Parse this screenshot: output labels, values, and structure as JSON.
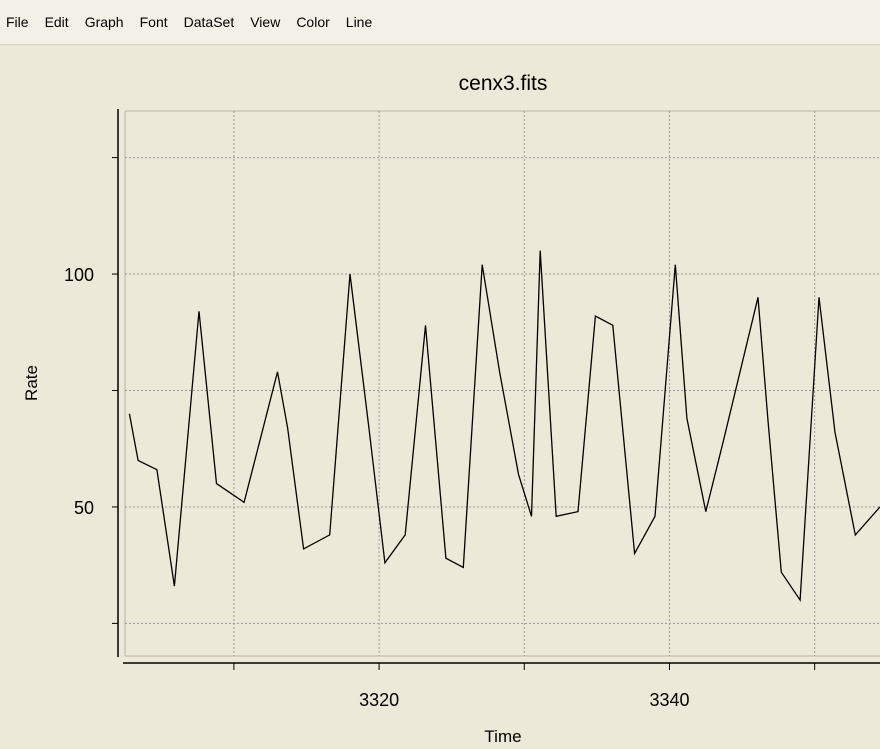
{
  "menu": {
    "items": [
      "File",
      "Edit",
      "Graph",
      "Font",
      "DataSet",
      "View",
      "Color",
      "Line"
    ]
  },
  "colors": {
    "background": "#ece9d8",
    "plot_background": "#ece9d8",
    "line": "#000000",
    "grid": "#999999"
  },
  "chart_data": {
    "type": "line",
    "title": "cenx3.fits",
    "xlabel": "Time",
    "ylabel": "Rate",
    "xlim": [
      3302.5,
      3354.5
    ],
    "ylim": [
      18,
      135
    ],
    "xticks": [
      3320,
      3340
    ],
    "yticks": [
      50,
      100
    ],
    "xgrid": [
      3310,
      3320,
      3330,
      3340,
      3350
    ],
    "ygrid": [
      25,
      50,
      75,
      100,
      125
    ],
    "grid": true,
    "series": [
      {
        "x": [
          3302.8,
          3303.4,
          3304.7,
          3305.9,
          3307.6,
          3308.8,
          3310.7,
          3313.0,
          3313.7,
          3314.8,
          3316.6,
          3318.0,
          3319.3,
          3320.4,
          3321.8,
          3323.2,
          3324.6,
          3325.8,
          3327.1,
          3328.3,
          3329.6,
          3330.5,
          3331.1,
          3332.2,
          3333.7,
          3334.9,
          3336.1,
          3337.6,
          3339.0,
          3340.4,
          3341.2,
          3342.5,
          3343.7,
          3346.1,
          3346.8,
          3347.7,
          3349.0,
          3350.3,
          3351.4,
          3352.8,
          3354.5
        ],
        "y": [
          70,
          60,
          58,
          33,
          92,
          55,
          51,
          79,
          67,
          41,
          44,
          100,
          67,
          38,
          44,
          89,
          39,
          37,
          102,
          79,
          57,
          48,
          105,
          48,
          49,
          91,
          89,
          40,
          48,
          102,
          69,
          49,
          64,
          95,
          68,
          36,
          30,
          95,
          66,
          44,
          50
        ]
      }
    ]
  }
}
